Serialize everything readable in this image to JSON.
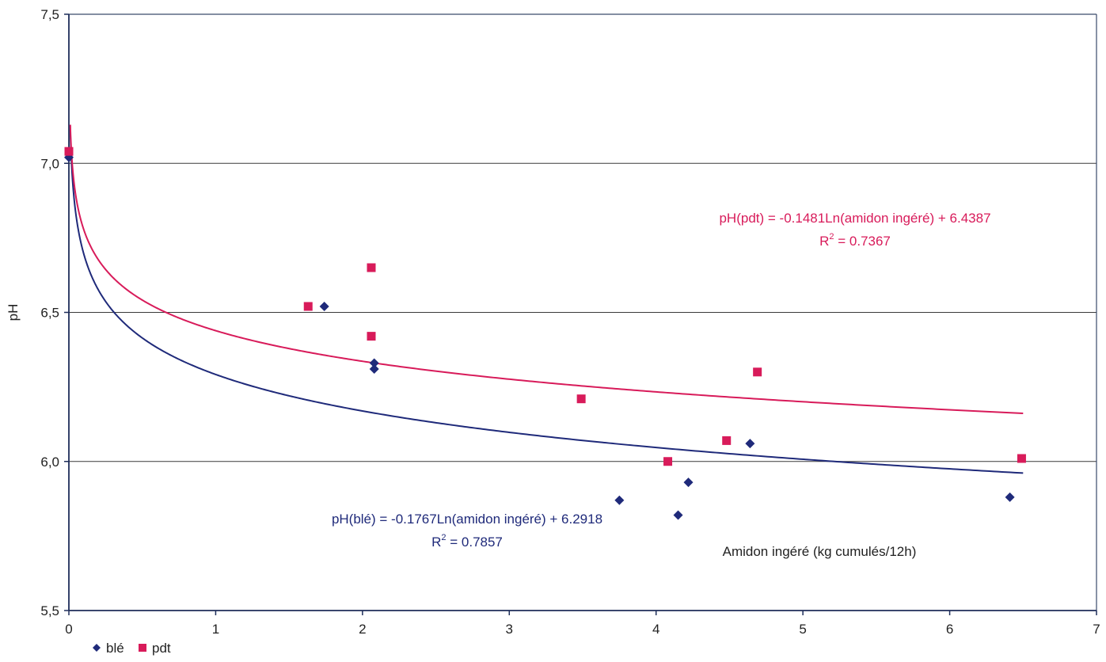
{
  "chart_data": {
    "type": "scatter",
    "title": "",
    "xlabel": "Amidon ingéré (kg cumulés/12h)",
    "ylabel": "pH",
    "xlim": [
      0,
      7
    ],
    "ylim": [
      5.5,
      7.5
    ],
    "x_ticks": [
      "0",
      "1",
      "2",
      "3",
      "4",
      "5",
      "6",
      "7"
    ],
    "y_ticks": [
      "5,5",
      "6,0",
      "6,5",
      "7,0",
      "7,5"
    ],
    "grid": "horizontal",
    "legend_position": "bottom-left",
    "series": [
      {
        "name": "blé",
        "color": "#1f2a7a",
        "marker": "diamond",
        "points": [
          {
            "x": 0.0,
            "y": 7.02
          },
          {
            "x": 1.74,
            "y": 6.52
          },
          {
            "x": 2.08,
            "y": 6.33
          },
          {
            "x": 2.08,
            "y": 6.31
          },
          {
            "x": 3.75,
            "y": 5.87
          },
          {
            "x": 4.15,
            "y": 5.82
          },
          {
            "x": 4.22,
            "y": 5.93
          },
          {
            "x": 4.64,
            "y": 6.06
          },
          {
            "x": 6.41,
            "y": 5.88
          }
        ],
        "trendline": {
          "a": -0.1767,
          "b": 6.2918,
          "x_end": 6.5,
          "equation": "pH(blé) = -0.1767Ln(amidon ingéré) + 6.2918",
          "r2_prefix": "R",
          "r2_sup": "2",
          "r2_value": " = 0.7857"
        }
      },
      {
        "name": "pdt",
        "color": "#d81b5a",
        "marker": "square",
        "points": [
          {
            "x": 0.0,
            "y": 7.04
          },
          {
            "x": 1.63,
            "y": 6.52
          },
          {
            "x": 2.06,
            "y": 6.65
          },
          {
            "x": 2.06,
            "y": 6.42
          },
          {
            "x": 3.49,
            "y": 6.21
          },
          {
            "x": 4.08,
            "y": 6.0
          },
          {
            "x": 4.48,
            "y": 6.07
          },
          {
            "x": 4.69,
            "y": 6.3
          },
          {
            "x": 6.49,
            "y": 6.01
          }
        ],
        "trendline": {
          "a": -0.1481,
          "b": 6.4387,
          "x_end": 6.5,
          "equation": "pH(pdt) = -0.1481Ln(amidon ingéré) + 6.4387",
          "r2_prefix": "R",
          "r2_sup": "2",
          "r2_value": " = 0.7367"
        }
      }
    ]
  }
}
